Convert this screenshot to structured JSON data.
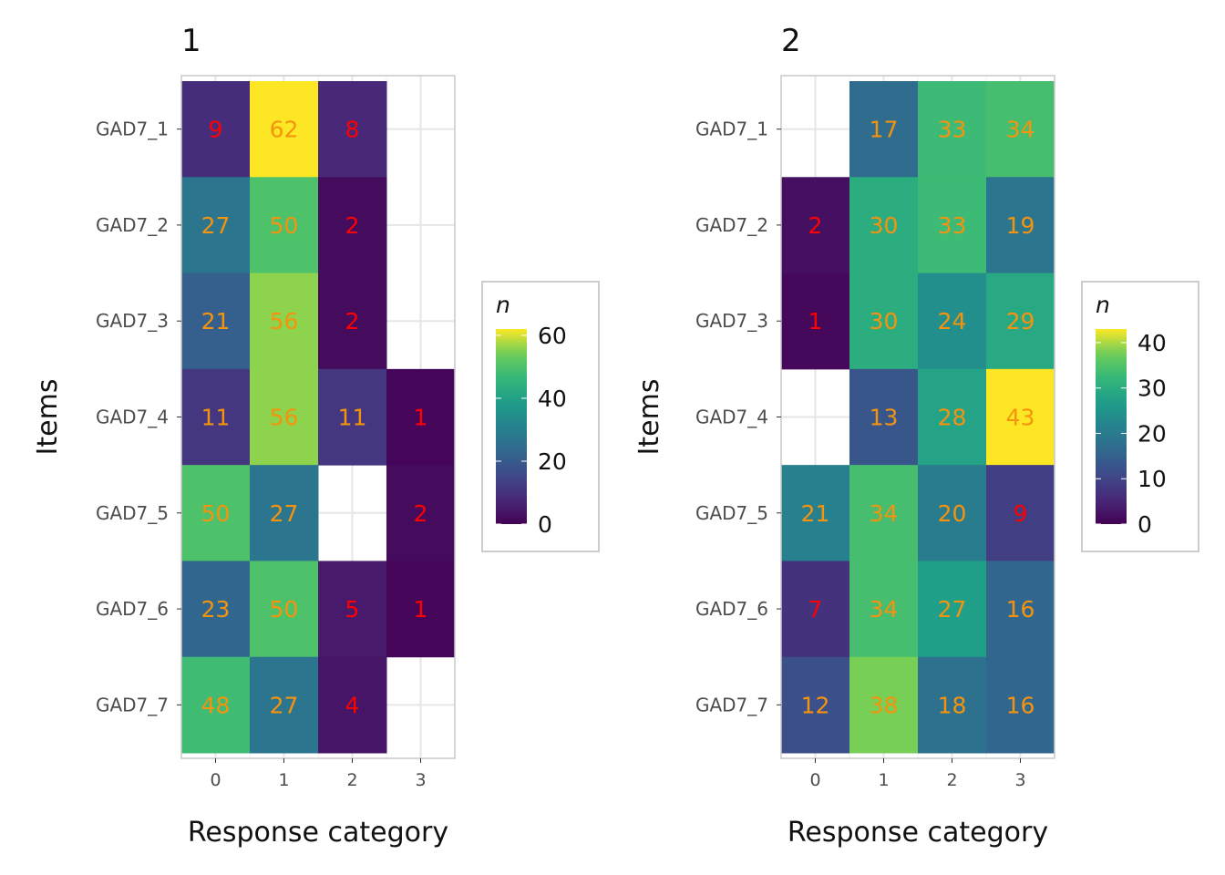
{
  "colors": {
    "low_label": "#ff0000",
    "high_label": "#f5930e",
    "panel_border": "#c8c8c8",
    "grid": "#e6e6e6"
  },
  "chart_data": [
    {
      "type": "heatmap",
      "title": "1",
      "xlabel": "Response category",
      "ylabel": "Items",
      "categories": [
        "0",
        "1",
        "2",
        "3"
      ],
      "items": [
        "GAD7_1",
        "GAD7_2",
        "GAD7_3",
        "GAD7_4",
        "GAD7_5",
        "GAD7_6",
        "GAD7_7"
      ],
      "values": [
        [
          9,
          62,
          8,
          null
        ],
        [
          27,
          50,
          2,
          null
        ],
        [
          21,
          56,
          2,
          null
        ],
        [
          11,
          56,
          11,
          1
        ],
        [
          50,
          27,
          null,
          2
        ],
        [
          23,
          50,
          5,
          1
        ],
        [
          48,
          27,
          4,
          null
        ]
      ],
      "legend": {
        "title": "n",
        "ticks": [
          0,
          20,
          40,
          60
        ],
        "range": [
          0,
          62
        ],
        "position": "right"
      },
      "colormap": "viridis",
      "grid": true
    },
    {
      "type": "heatmap",
      "title": "2",
      "xlabel": "Response category",
      "ylabel": "Items",
      "categories": [
        "0",
        "1",
        "2",
        "3"
      ],
      "items": [
        "GAD7_1",
        "GAD7_2",
        "GAD7_3",
        "GAD7_4",
        "GAD7_5",
        "GAD7_6",
        "GAD7_7"
      ],
      "values": [
        [
          null,
          17,
          33,
          34
        ],
        [
          2,
          30,
          33,
          19
        ],
        [
          1,
          30,
          24,
          29
        ],
        [
          null,
          13,
          28,
          43
        ],
        [
          21,
          34,
          20,
          9
        ],
        [
          7,
          34,
          27,
          16
        ],
        [
          12,
          38,
          18,
          16
        ]
      ],
      "legend": {
        "title": "n",
        "ticks": [
          0,
          10,
          20,
          30,
          40
        ],
        "range": [
          0,
          43
        ],
        "position": "right"
      },
      "colormap": "viridis",
      "grid": true
    }
  ]
}
